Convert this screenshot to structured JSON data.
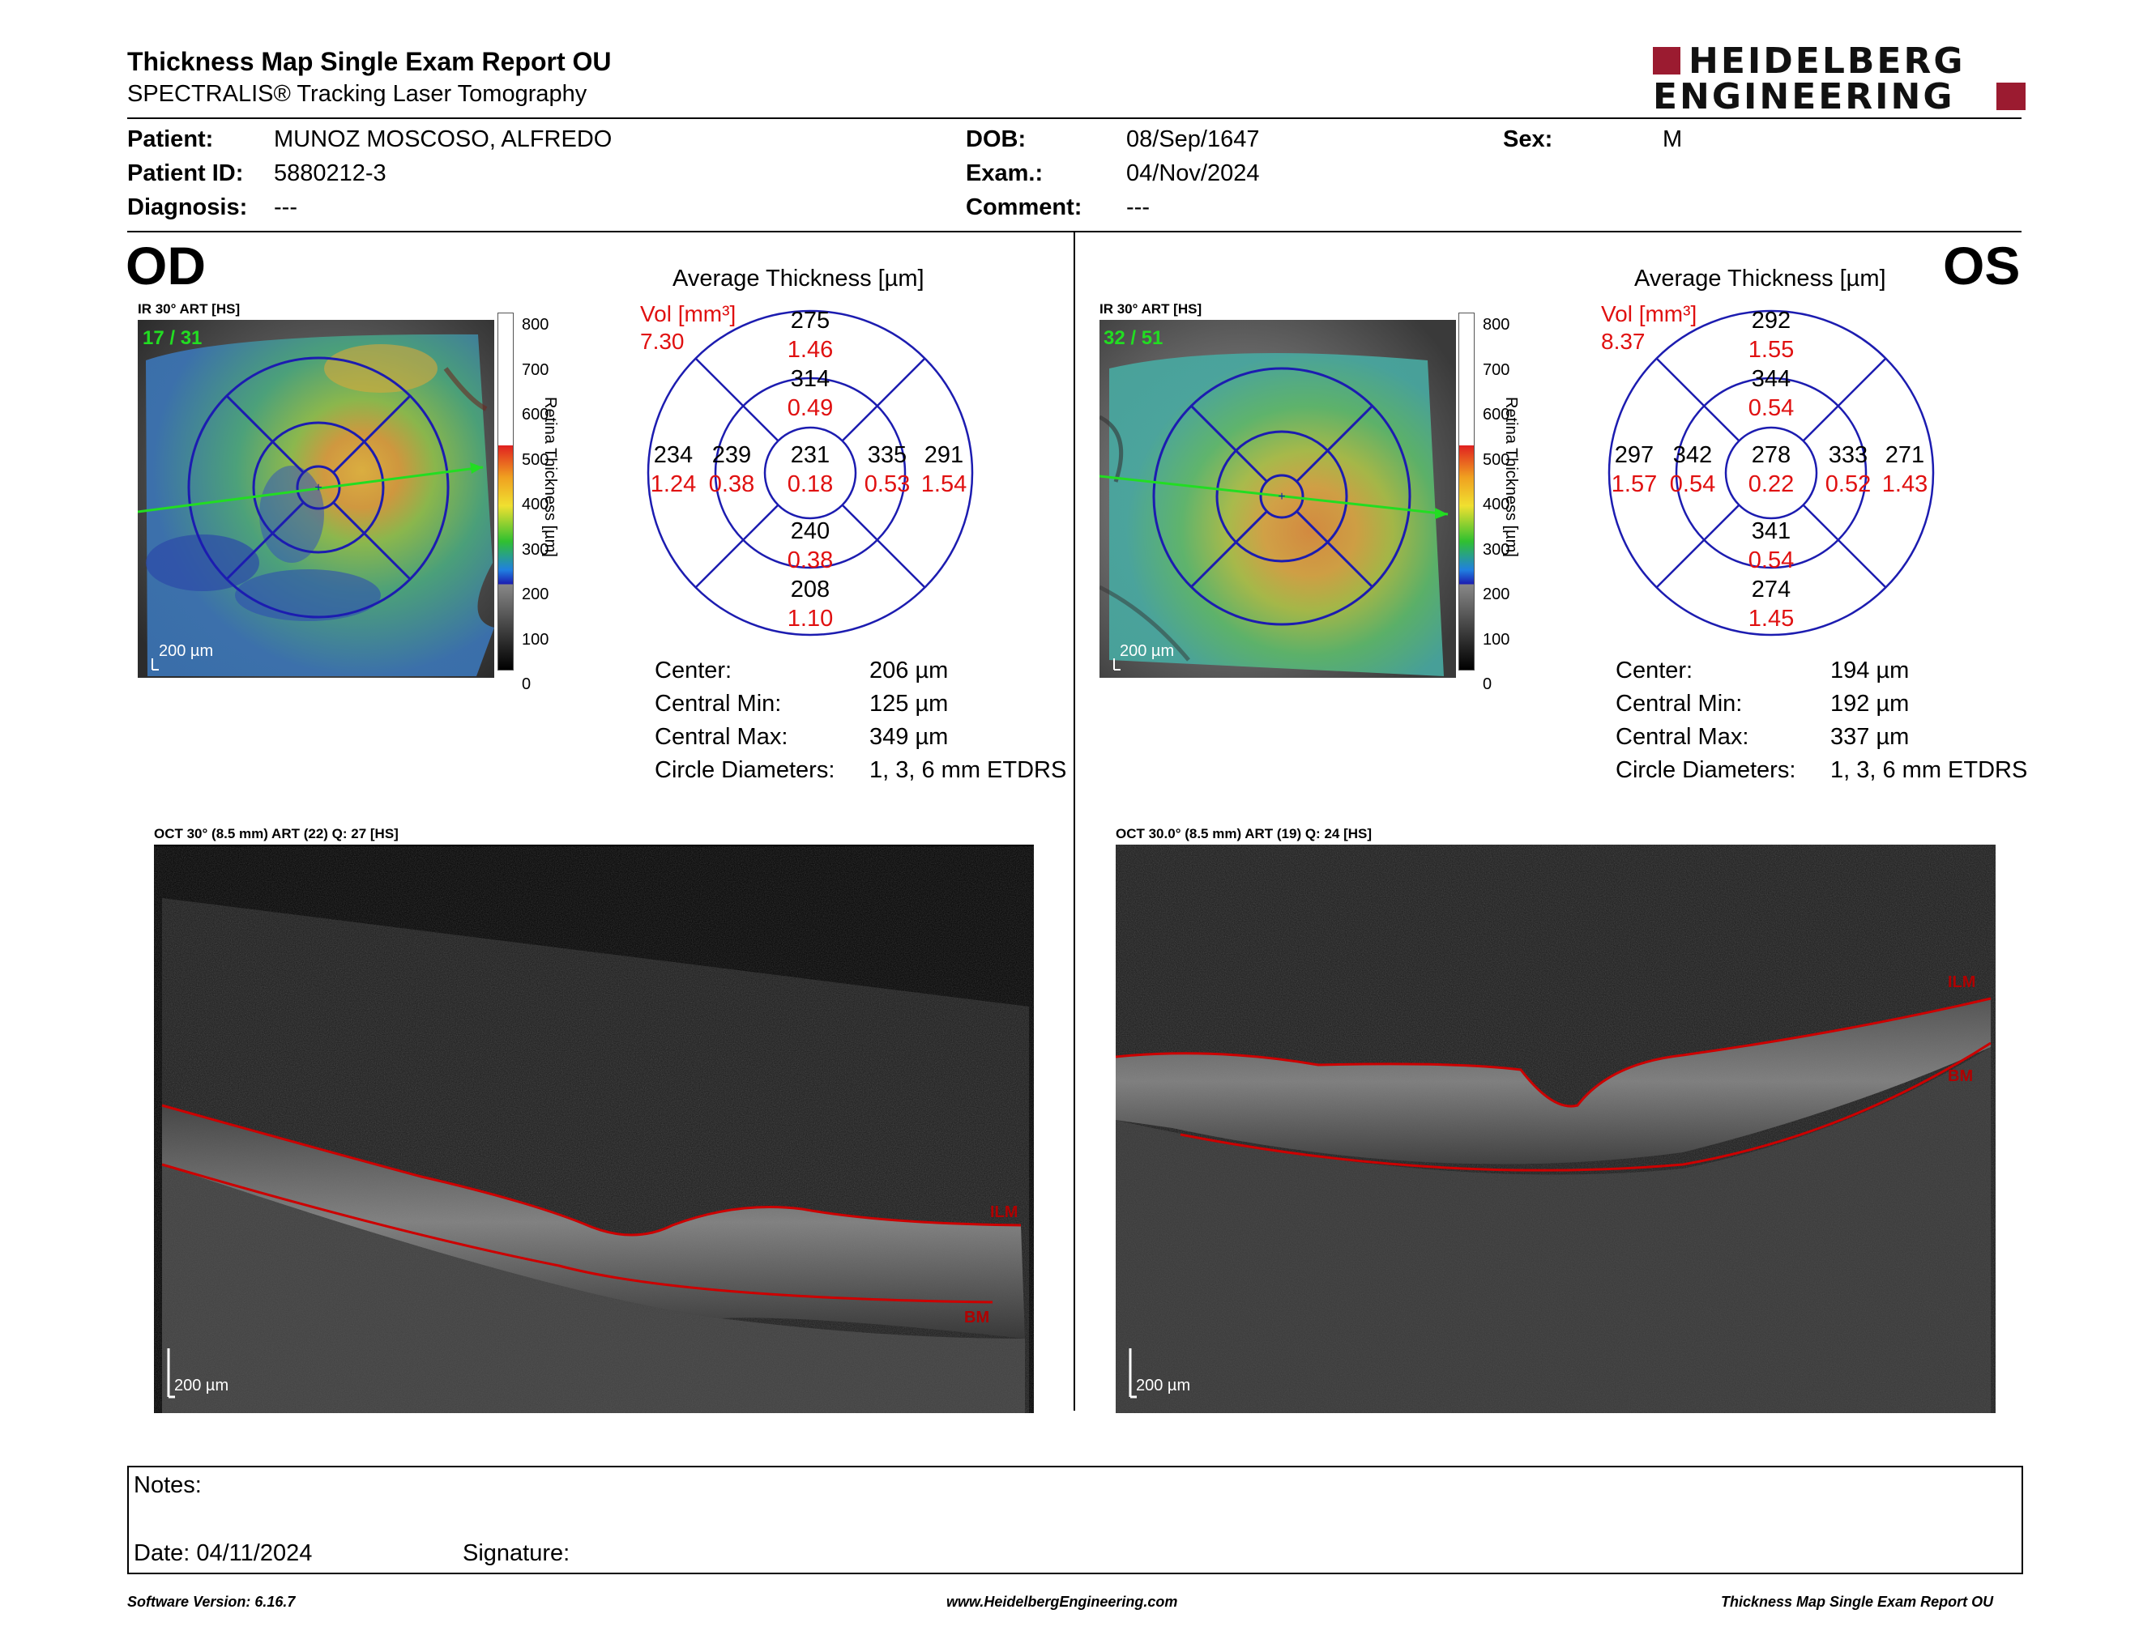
{
  "header": {
    "title": "Thickness Map Single Exam Report OU",
    "subtitle": "SPECTRALIS® Tracking Laser Tomography",
    "logo_line1": "HEIDELBERG",
    "logo_line2": "ENGINEERING",
    "brand_color": "#9b1b30"
  },
  "patient": {
    "patient_label": "Patient:",
    "patient_value": "MUNOZ MOSCOSO, ALFREDO",
    "id_label": "Patient ID:",
    "id_value": "5880212-3",
    "diagnosis_label": "Diagnosis:",
    "diagnosis_value": "---",
    "dob_label": "DOB:",
    "dob_value": "08/Sep/1647",
    "exam_label": "Exam.:",
    "exam_value": "04/Nov/2024",
    "comment_label": "Comment:",
    "comment_value": "---",
    "sex_label": "Sex:",
    "sex_value": "M"
  },
  "od": {
    "eye": "OD",
    "ir_label": "IR 30° ART [HS]",
    "frames": "17 / 31",
    "scale": "200 µm",
    "avg_title": "Average Thickness [µm]",
    "vol_label": "Vol [mm³]",
    "vol_total": "7.30",
    "grid": {
      "center": [
        "231",
        "0.18"
      ],
      "inner_superior": [
        "314",
        "0.49"
      ],
      "inner_inferior": [
        "240",
        "0.38"
      ],
      "inner_nasal_left": [
        "239",
        "0.38"
      ],
      "inner_right": [
        "335",
        "0.53"
      ],
      "outer_superior": [
        "275",
        "1.46"
      ],
      "outer_inferior": [
        "208",
        "1.10"
      ],
      "outer_left": [
        "234",
        "1.24"
      ],
      "outer_right": [
        "291",
        "1.54"
      ]
    },
    "stats": {
      "center_label": "Center:",
      "center_value": "206 µm",
      "min_label": "Central Min:",
      "min_value": "125 µm",
      "max_label": "Central Max:",
      "max_value": "349 µm",
      "diam_label": "Circle Diameters:",
      "diam_value": "1, 3, 6 mm ETDRS"
    },
    "oct_label": "OCT 30° (8.5 mm) ART (22) Q: 27 [HS]",
    "oct_scale": "200 µm",
    "ilm": "ILM",
    "bm": "BM"
  },
  "os": {
    "eye": "OS",
    "ir_label": "IR 30° ART [HS]",
    "frames": "32 / 51",
    "scale": "200 µm",
    "avg_title": "Average Thickness [µm]",
    "vol_label": "Vol [mm³]",
    "vol_total": "8.37",
    "grid": {
      "center": [
        "278",
        "0.22"
      ],
      "inner_superior": [
        "344",
        "0.54"
      ],
      "inner_inferior": [
        "341",
        "0.54"
      ],
      "inner_nasal_left": [
        "342",
        "0.54"
      ],
      "inner_right": [
        "333",
        "0.52"
      ],
      "outer_superior": [
        "292",
        "1.55"
      ],
      "outer_inferior": [
        "274",
        "1.45"
      ],
      "outer_left": [
        "297",
        "1.57"
      ],
      "outer_right": [
        "271",
        "1.43"
      ]
    },
    "stats": {
      "center_label": "Center:",
      "center_value": "194 µm",
      "min_label": "Central Min:",
      "min_value": "192 µm",
      "max_label": "Central Max:",
      "max_value": "337 µm",
      "diam_label": "Circle Diameters:",
      "diam_value": "1, 3, 6 mm ETDRS"
    },
    "oct_label": "OCT 30.0° (8.5 mm) ART (19) Q: 24 [HS]",
    "oct_scale": "200 µm",
    "ilm": "ILM",
    "bm": "BM"
  },
  "colorbar": {
    "ticks": [
      "800",
      "700",
      "600",
      "500",
      "400",
      "300",
      "200",
      "100",
      "0"
    ],
    "label": "Retina  Thickness [µm]"
  },
  "notes": {
    "notes_label": "Notes:",
    "date_label": "Date: 04/11/2024",
    "signature_label": "Signature:"
  },
  "footer": {
    "software": "Software Version: 6.16.7",
    "url": "www.HeidelbergEngineering.com",
    "report": "Thickness Map Single Exam Report OU"
  },
  "colors": {
    "grid_blue": "#1c1cb0",
    "volume_red": "#e01010",
    "segment_line": "#cc0000",
    "scan_arrow": "#22dd22"
  }
}
